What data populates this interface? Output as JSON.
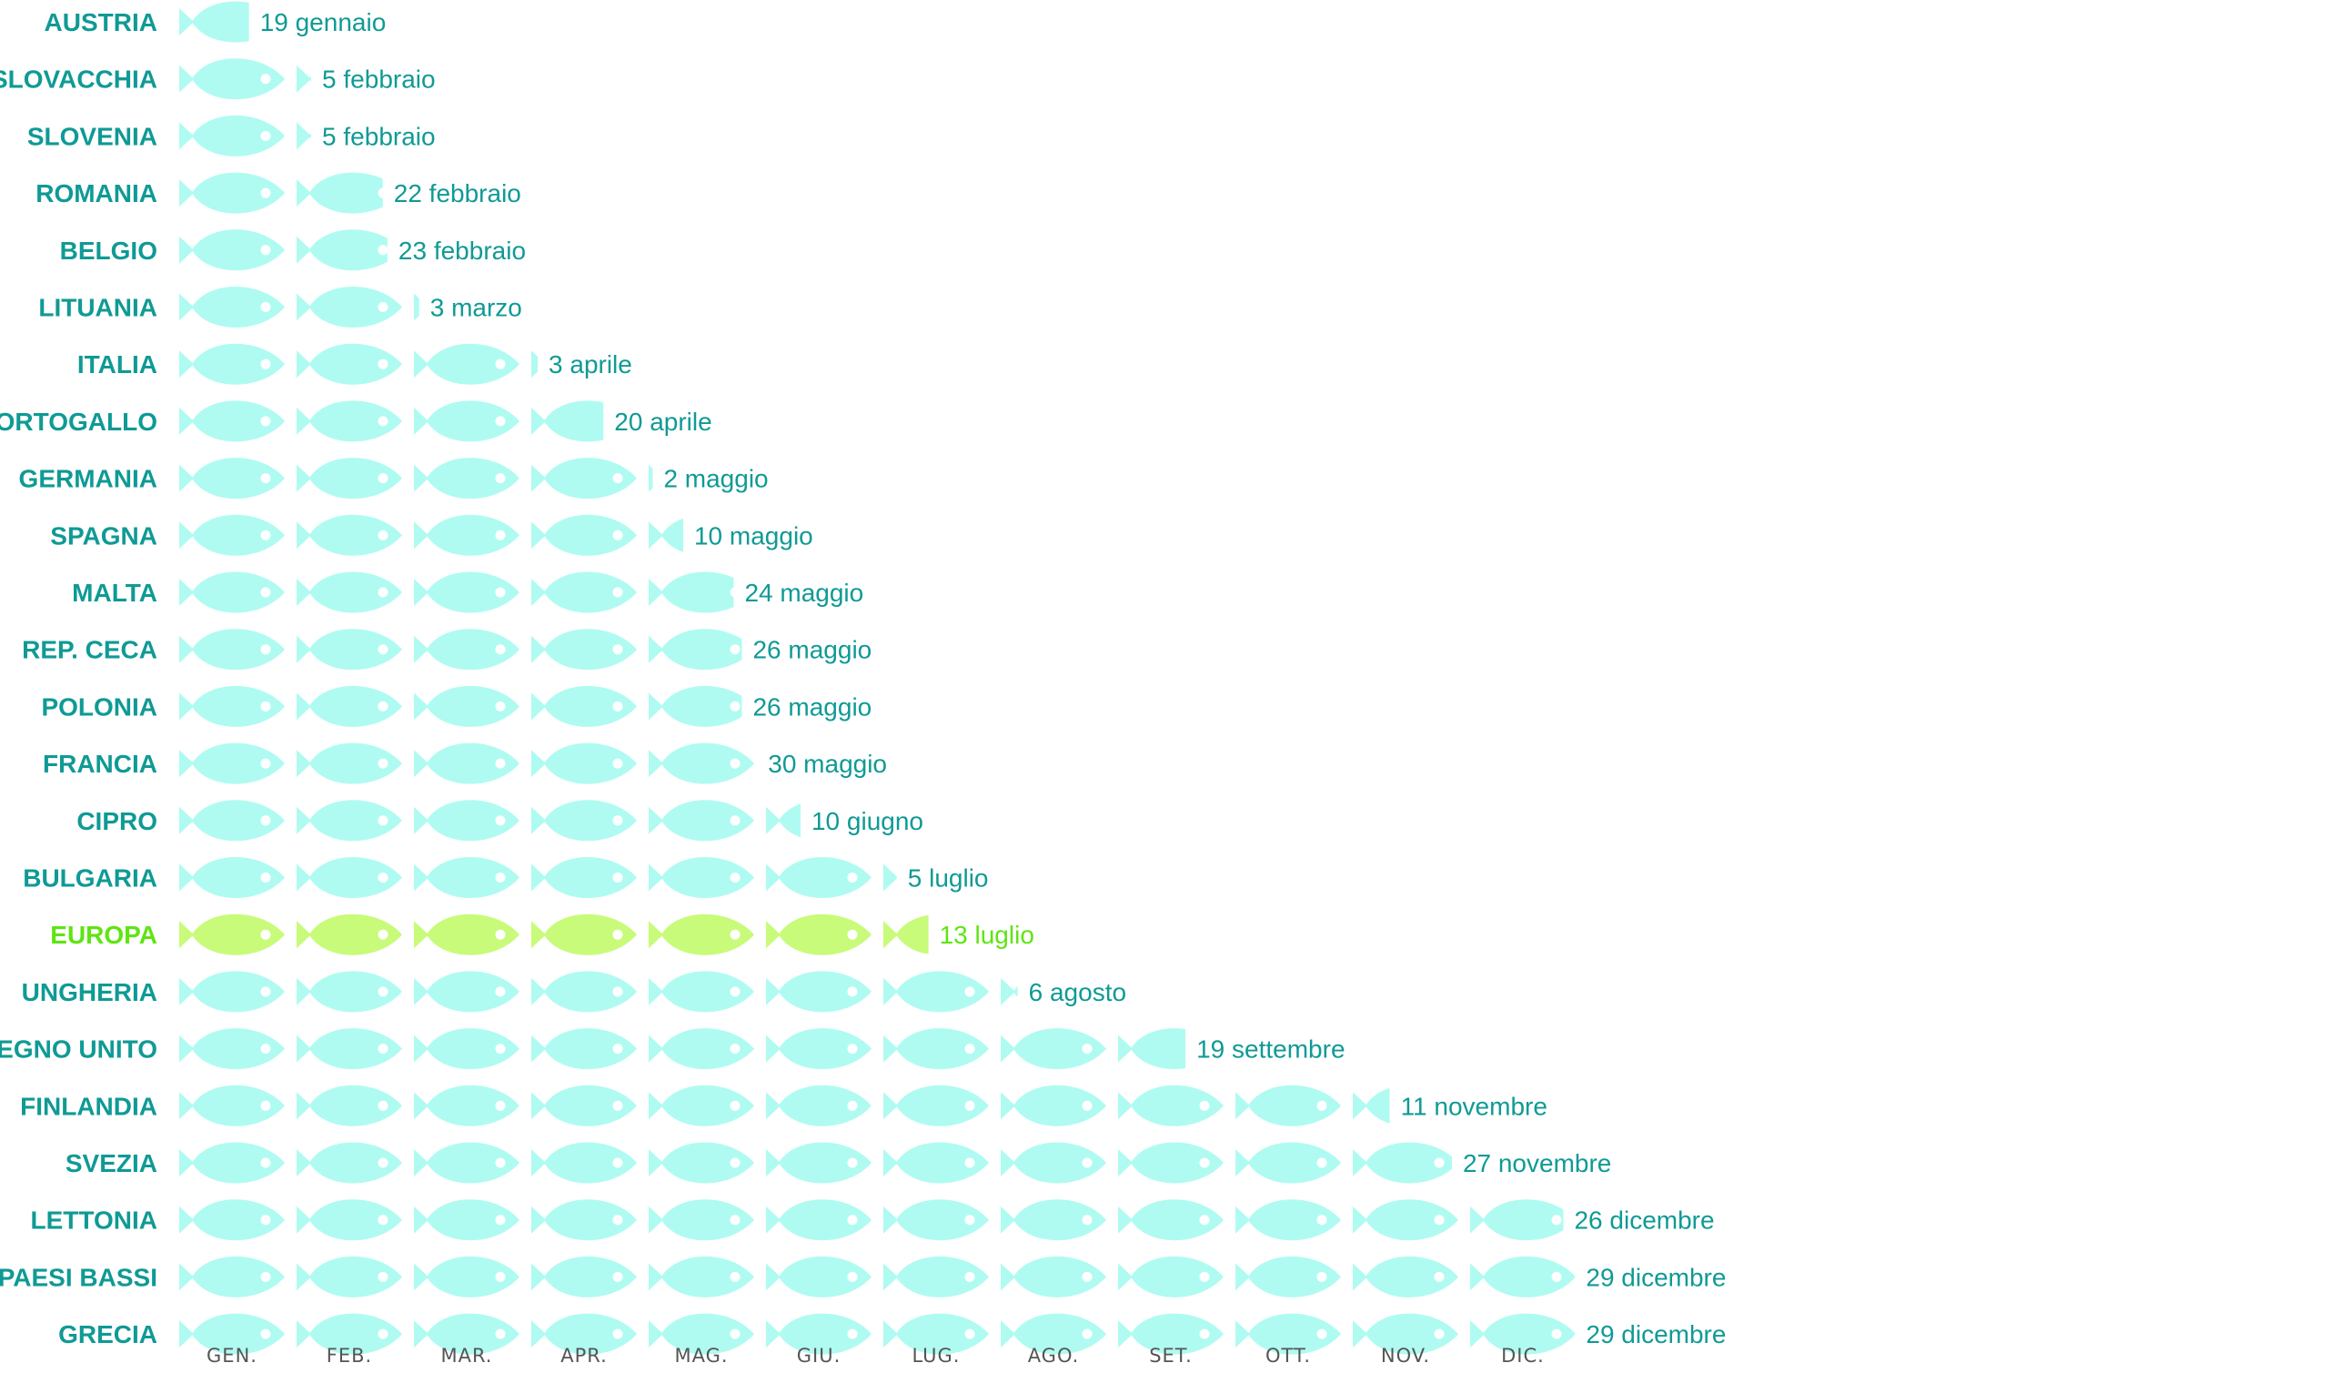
{
  "chart_data": {
    "type": "bar",
    "title": "",
    "xlabel": "",
    "ylabel": "",
    "x_unit": "month",
    "xlim": [
      0,
      12
    ],
    "months": [
      "GEN.",
      "FEB.",
      "MAR.",
      "APR.",
      "MAG.",
      "GIU.",
      "LUG.",
      "AGO.",
      "SET.",
      "OTT.",
      "NOV.",
      "DIC."
    ],
    "rows": [
      {
        "country": "AUSTRIA",
        "date_label": "19 gennaio",
        "value": 0.61
      },
      {
        "country": "SLOVACCHIA",
        "date_label": "5 febbraio",
        "value": 1.14
      },
      {
        "country": "SLOVENIA",
        "date_label": "5 febbraio",
        "value": 1.14
      },
      {
        "country": "ROMANIA",
        "date_label": "22 febbraio",
        "value": 1.75
      },
      {
        "country": "BELGIO",
        "date_label": "23 febbraio",
        "value": 1.79
      },
      {
        "country": "LITUANIA",
        "date_label": "3 marzo",
        "value": 2.06
      },
      {
        "country": "ITALIA",
        "date_label": "3 aprile",
        "value": 3.07
      },
      {
        "country": "PORTOGALLO",
        "date_label": "20 aprile",
        "value": 3.63
      },
      {
        "country": "GERMANIA",
        "date_label": "2 maggio",
        "value": 4.05
      },
      {
        "country": "SPAGNA",
        "date_label": "10 maggio",
        "value": 4.31
      },
      {
        "country": "MALTA",
        "date_label": "24 maggio",
        "value": 4.74
      },
      {
        "country": "REP. CECA",
        "date_label": "26 maggio",
        "value": 4.81
      },
      {
        "country": "POLONIA",
        "date_label": "26 maggio",
        "value": 4.81
      },
      {
        "country": "FRANCIA",
        "date_label": "30 maggio",
        "value": 4.94
      },
      {
        "country": "CIPRO",
        "date_label": "10 giugno",
        "value": 5.31
      },
      {
        "country": "BULGARIA",
        "date_label": "5 luglio",
        "value": 6.13
      },
      {
        "country": "EUROPA",
        "date_label": "13 luglio",
        "value": 6.4,
        "highlight": true
      },
      {
        "country": "UNGHERIA",
        "date_label": "6 agosto",
        "value": 7.16
      },
      {
        "country": "REGNO UNITO",
        "date_label": "19 settembre",
        "value": 8.59
      },
      {
        "country": "FINLANDIA",
        "date_label": "11 novembre",
        "value": 10.33
      },
      {
        "country": "SVEZIA",
        "date_label": "27 novembre",
        "value": 10.86
      },
      {
        "country": "LETTONIA",
        "date_label": "26 dicembre",
        "value": 11.81
      },
      {
        "country": "PAESI BASSI",
        "date_label": "29 dicembre",
        "value": 11.91
      },
      {
        "country": "GRECIA",
        "date_label": "29 dicembre",
        "value": 11.91
      }
    ]
  },
  "colors": {
    "fish": "#b0fbf1",
    "fish_highlight": "#c8fb7a",
    "label": "#0f9a95",
    "label_highlight": "#5ee512",
    "month_label": "#555555"
  }
}
